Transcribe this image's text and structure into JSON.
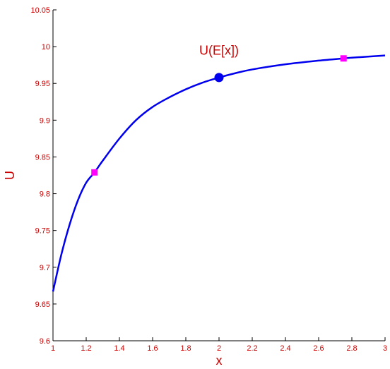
{
  "chart_data": {
    "type": "line",
    "xlabel": "x",
    "ylabel": "U",
    "xlim": [
      1,
      3
    ],
    "ylim": [
      9.6,
      10.05
    ],
    "x_ticks": [
      "1",
      "1.2",
      "1.4",
      "1.6",
      "1.8",
      "2",
      "2.2",
      "2.4",
      "2.6",
      "2.8",
      "3"
    ],
    "y_ticks": [
      "9.6",
      "9.65",
      "9.7",
      "9.75",
      "9.8",
      "9.85",
      "9.9",
      "9.95",
      "10",
      "10.05"
    ],
    "grid": false,
    "series": [
      {
        "color": "#0000ee",
        "x": [
          1.0,
          1.05,
          1.1,
          1.15,
          1.2,
          1.25,
          1.3,
          1.4,
          1.5,
          1.6,
          1.7,
          1.8,
          1.9,
          2.0,
          2.1,
          2.2,
          2.4,
          2.6,
          2.75,
          2.8,
          3.0
        ],
        "y": [
          9.667,
          9.717,
          9.758,
          9.791,
          9.815,
          9.829,
          9.845,
          9.875,
          9.9,
          9.918,
          9.931,
          9.942,
          9.951,
          9.958,
          9.964,
          9.969,
          9.976,
          9.981,
          9.984,
          9.985,
          9.988
        ]
      }
    ],
    "markers": [
      {
        "shape": "square",
        "color": "#ff00ff",
        "x": 1.25,
        "y": 9.829
      },
      {
        "shape": "square",
        "color": "#ff00ff",
        "x": 2.75,
        "y": 9.984
      },
      {
        "shape": "circle",
        "color": "#0000ee",
        "x": 2.0,
        "y": 9.958
      }
    ],
    "annotations": [
      {
        "text": "U(E[x])",
        "x": 2.0,
        "y": 9.995
      }
    ],
    "axis_color": "#000000",
    "text_color": "#cc0000"
  }
}
